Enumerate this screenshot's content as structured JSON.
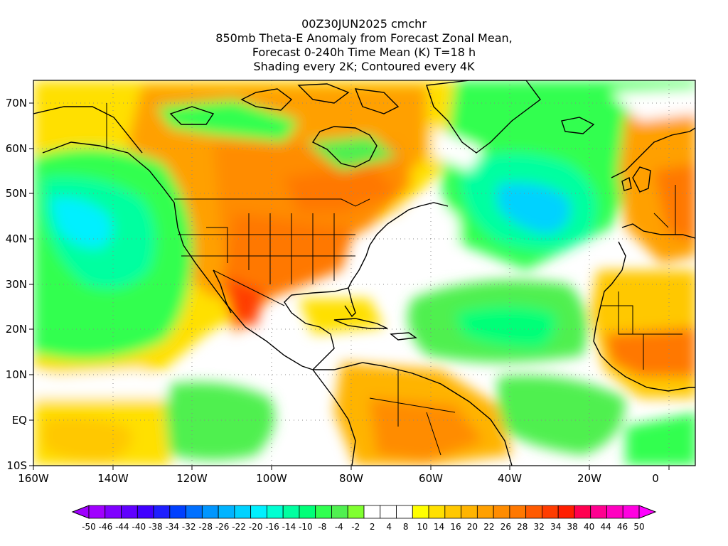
{
  "title": {
    "lines": [
      "00Z30JUN2025 cmchr",
      "850mb Theta-E Anomaly from Forecast Zonal Mean,",
      "Forecast 0-240h Time Mean (K) T=18 h",
      "Shading every 2K; Contoured every 4K"
    ]
  },
  "axes": {
    "lat_labels": [
      "70N",
      "60N",
      "50N",
      "40N",
      "30N",
      "20N",
      "10N",
      "EQ",
      "10S"
    ],
    "lon_labels": [
      "160W",
      "140W",
      "120W",
      "100W",
      "80W",
      "60W",
      "40W",
      "20W",
      "0"
    ]
  },
  "colorbar": {
    "labels": [
      "-50",
      "-46",
      "-44",
      "-40",
      "-38",
      "-34",
      "-32",
      "-28",
      "-26",
      "-22",
      "-20",
      "-16",
      "-14",
      "-10",
      "-8",
      "-4",
      "-2",
      "2",
      "4",
      "8",
      "10",
      "14",
      "16",
      "20",
      "22",
      "26",
      "28",
      "32",
      "34",
      "38",
      "40",
      "44",
      "46",
      "50"
    ],
    "colors": [
      "#a000ff",
      "#7f00ff",
      "#6000ff",
      "#4000ff",
      "#1f1fff",
      "#0040ff",
      "#0070ff",
      "#0096ff",
      "#00b4ff",
      "#00d2ff",
      "#00f0ff",
      "#00ffd2",
      "#00ffa0",
      "#00ff78",
      "#30ff50",
      "#50f050",
      "#80ff30",
      "#ffffff",
      "#ffffff",
      "#ffffff",
      "#ffff00",
      "#ffe000",
      "#ffc800",
      "#ffb400",
      "#ffa000",
      "#ff8c00",
      "#ff7800",
      "#ff5a00",
      "#ff3c00",
      "#ff1e00",
      "#ff0050",
      "#ff0090",
      "#ff00c0",
      "#ff00e0",
      "#ff00ff"
    ]
  }
}
